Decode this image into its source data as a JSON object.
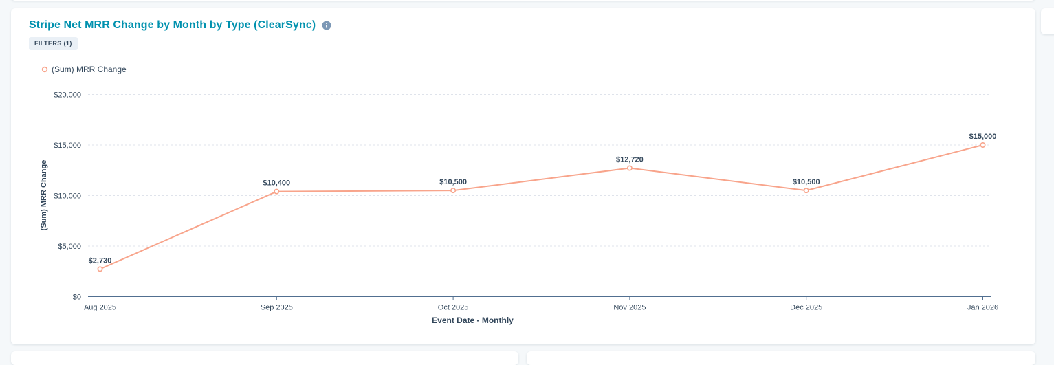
{
  "header": {
    "title": "Stripe Net MRR Change by Month by Type (ClearSync)",
    "info_icon": "info-icon",
    "filters_label": "FILTERS (1)"
  },
  "colors": {
    "accent": "#0091ae",
    "series": "#f8a48b",
    "text": "#33475b",
    "grid": "#dfe3eb",
    "axis": "#516f90"
  },
  "chart_data": {
    "type": "line",
    "title": "Stripe Net MRR Change by Month by Type (ClearSync)",
    "xlabel": "Event Date - Monthly",
    "ylabel": "(Sum) MRR Change",
    "categories": [
      "Aug 2025",
      "Sep 2025",
      "Oct 2025",
      "Nov 2025",
      "Dec 2025",
      "Jan 2026"
    ],
    "series": [
      {
        "name": "(Sum) MRR Change",
        "values": [
          2730,
          10400,
          10500,
          12720,
          10500,
          15000
        ],
        "labels": [
          "$2,730",
          "$10,400",
          "$10,500",
          "$12,720",
          "$10,500",
          "$15,000"
        ]
      }
    ],
    "y_ticks": [
      0,
      5000,
      10000,
      15000,
      20000
    ],
    "y_tick_labels": [
      "$0",
      "$5,000",
      "$10,000",
      "$15,000",
      "$20,000"
    ],
    "ylim": [
      0,
      20000
    ],
    "grid": true,
    "legend": "top-left"
  }
}
